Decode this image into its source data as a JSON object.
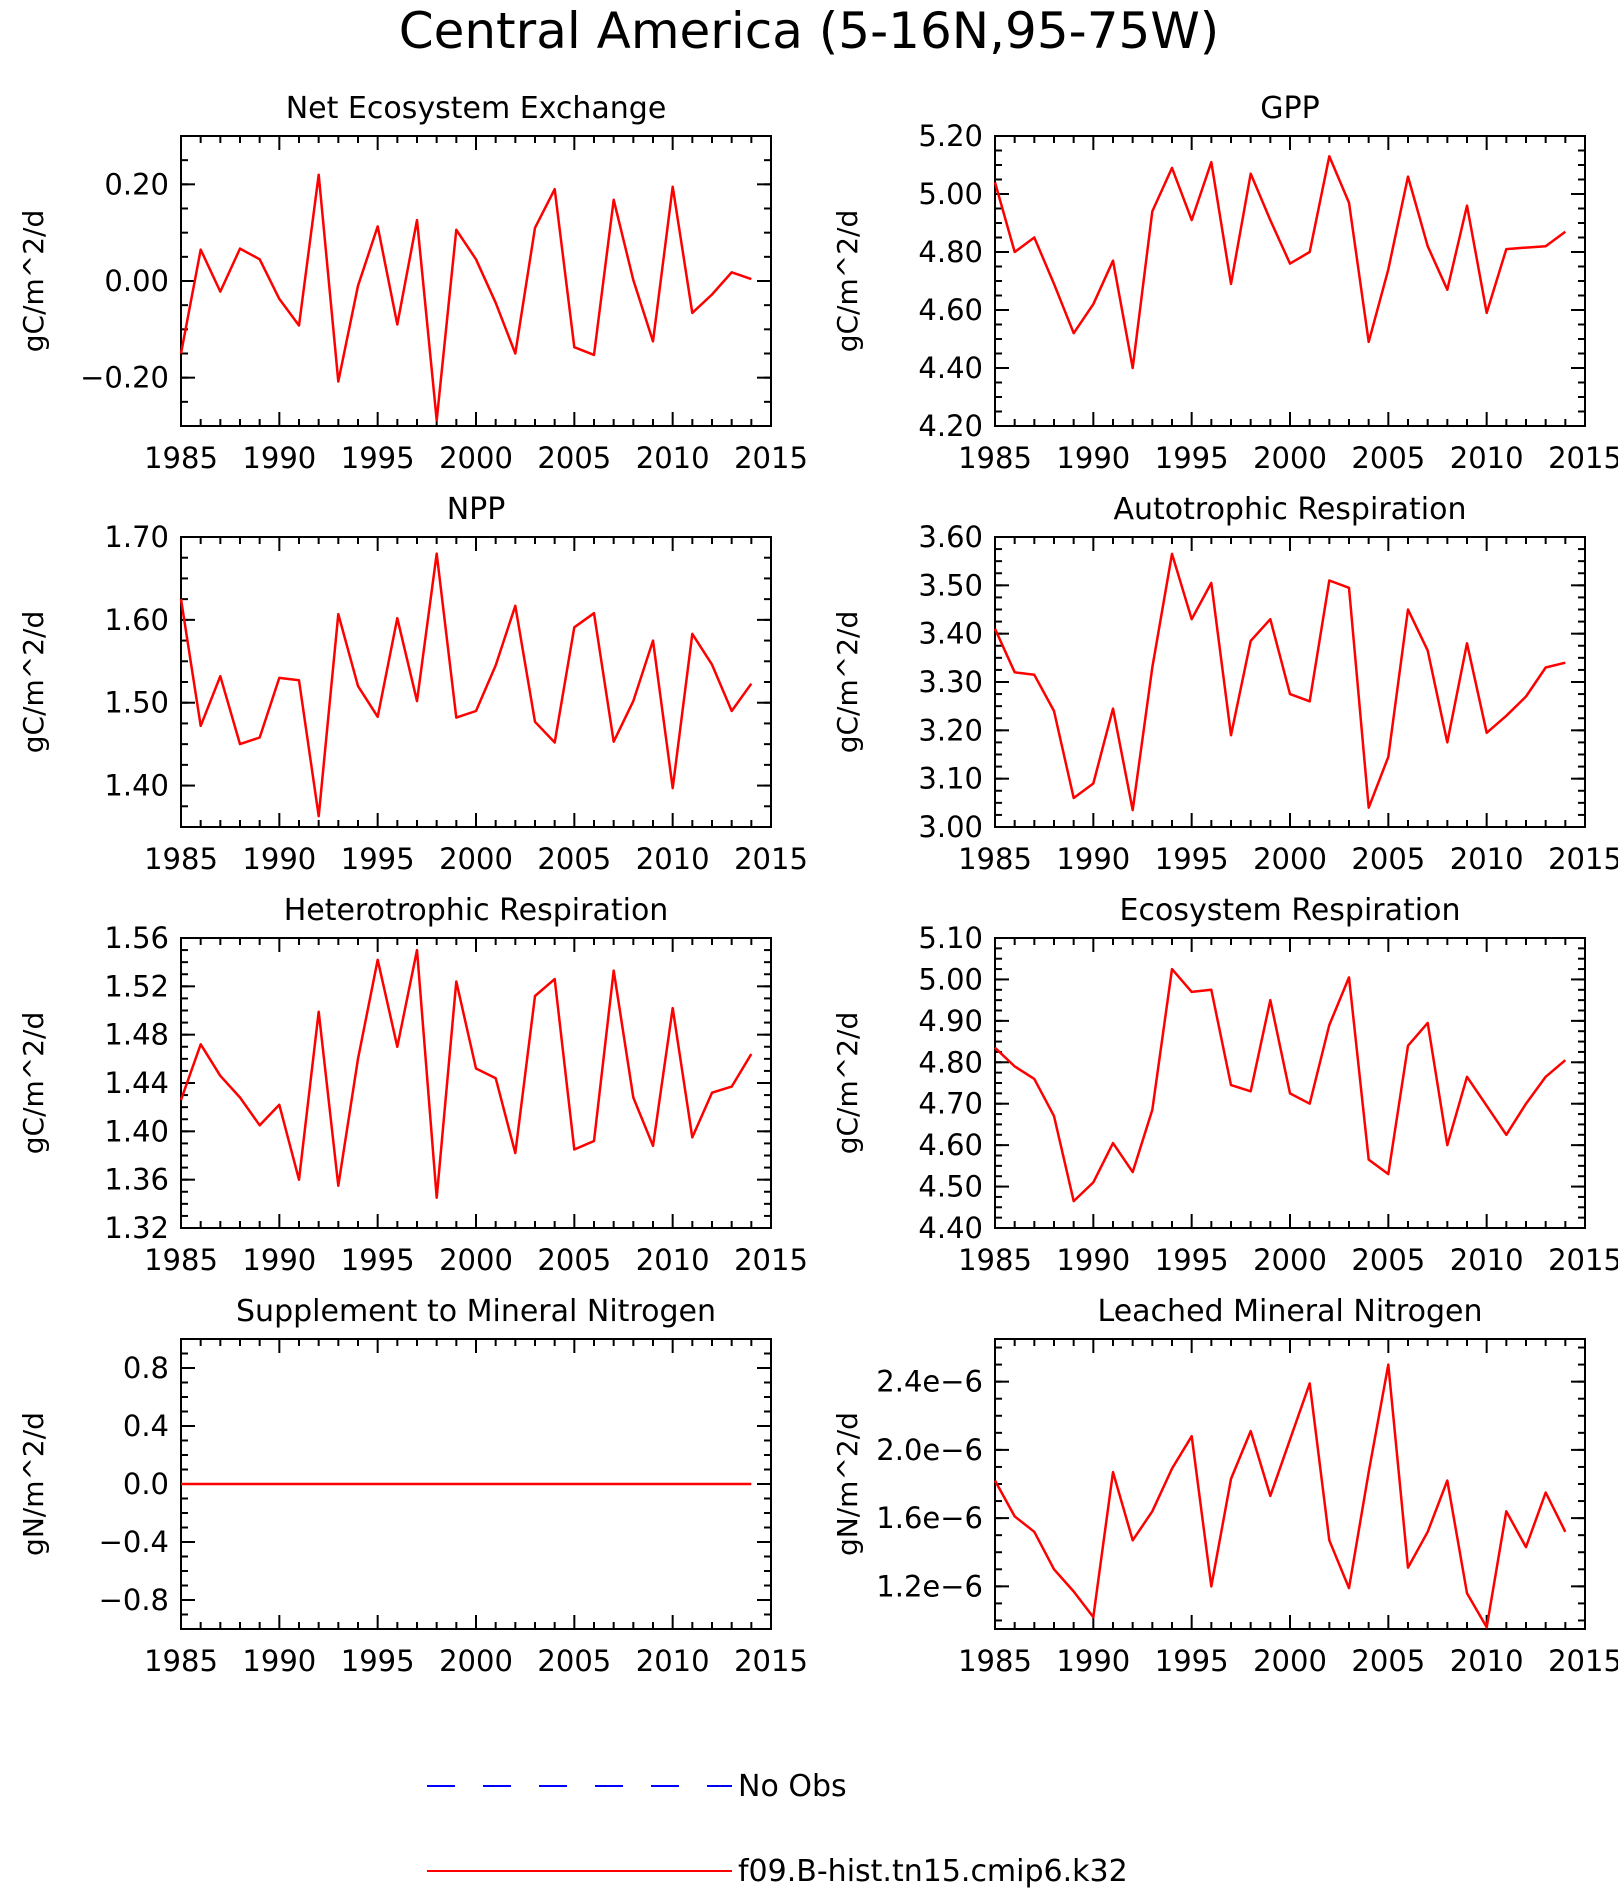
{
  "figure_title": "Central America (5-16N,95-75W)",
  "legend": [
    {
      "label": "No Obs",
      "color": "#0000ff",
      "dash": true
    },
    {
      "label": "f09.B-hist.tn15.cmip6.k32",
      "color": "#ff0000",
      "dash": false
    }
  ],
  "chart_data": [
    {
      "type": "line",
      "title": "Net Ecosystem Exchange",
      "ylabel": "gC/m^2/d",
      "xlim": [
        1985,
        2015
      ],
      "ylim": [
        -0.3,
        0.3
      ],
      "yticks": [
        -0.2,
        0.0,
        0.2
      ],
      "ytick_labels": [
        "−0.20",
        "0.00",
        "0.20"
      ],
      "xticks": [
        1985,
        1990,
        1995,
        2000,
        2005,
        2010,
        2015
      ],
      "color": "#ff0000",
      "x": [
        1985,
        1986,
        1987,
        1988,
        1989,
        1990,
        1991,
        1992,
        1993,
        1994,
        1995,
        1996,
        1997,
        1998,
        1999,
        2000,
        2001,
        2002,
        2003,
        2004,
        2005,
        2006,
        2007,
        2008,
        2009,
        2010,
        2011,
        2012,
        2013,
        2014
      ],
      "values": [
        -0.15,
        0.065,
        -0.022,
        0.067,
        0.045,
        -0.037,
        -0.092,
        0.22,
        -0.208,
        -0.01,
        0.113,
        -0.09,
        0.126,
        -0.288,
        0.106,
        0.045,
        -0.045,
        -0.15,
        0.11,
        0.19,
        -0.137,
        -0.153,
        0.168,
        0.002,
        -0.125,
        0.195,
        -0.066,
        -0.028,
        0.018,
        0.004
      ]
    },
    {
      "type": "line",
      "title": "GPP",
      "ylabel": "gC/m^2/d",
      "xlim": [
        1985,
        2015
      ],
      "ylim": [
        4.2,
        5.2
      ],
      "yticks": [
        4.2,
        4.4,
        4.6,
        4.8,
        5.0,
        5.2
      ],
      "ytick_labels": [
        "4.20",
        "4.40",
        "4.60",
        "4.80",
        "5.00",
        "5.20"
      ],
      "xticks": [
        1985,
        1990,
        1995,
        2000,
        2005,
        2010,
        2015
      ],
      "color": "#ff0000",
      "x": [
        1985,
        1986,
        1987,
        1988,
        1989,
        1990,
        1991,
        1992,
        1993,
        1994,
        1995,
        1996,
        1997,
        1998,
        1999,
        2000,
        2001,
        2002,
        2003,
        2004,
        2005,
        2006,
        2007,
        2008,
        2009,
        2010,
        2011,
        2012,
        2013,
        2014
      ],
      "values": [
        5.04,
        4.8,
        4.85,
        4.69,
        4.52,
        4.62,
        4.77,
        4.4,
        4.94,
        5.09,
        4.91,
        5.11,
        4.69,
        5.07,
        4.91,
        4.76,
        4.8,
        5.13,
        4.97,
        4.49,
        4.74,
        5.06,
        4.82,
        4.67,
        4.96,
        4.59,
        4.81,
        4.815,
        4.82,
        4.87
      ]
    },
    {
      "type": "line",
      "title": "NPP",
      "ylabel": "gC/m^2/d",
      "xlim": [
        1985,
        2015
      ],
      "ylim": [
        1.35,
        1.7
      ],
      "yticks": [
        1.4,
        1.5,
        1.6,
        1.7
      ],
      "ytick_labels": [
        "1.40",
        "1.50",
        "1.60",
        "1.70"
      ],
      "xticks": [
        1985,
        1990,
        1995,
        2000,
        2005,
        2010,
        2015
      ],
      "color": "#ff0000",
      "x": [
        1985,
        1986,
        1987,
        1988,
        1989,
        1990,
        1991,
        1992,
        1993,
        1994,
        1995,
        1996,
        1997,
        1998,
        1999,
        2000,
        2001,
        2002,
        2003,
        2004,
        2005,
        2006,
        2007,
        2008,
        2009,
        2010,
        2011,
        2012,
        2013,
        2014
      ],
      "values": [
        1.625,
        1.472,
        1.532,
        1.45,
        1.458,
        1.53,
        1.527,
        1.363,
        1.607,
        1.52,
        1.483,
        1.602,
        1.502,
        1.68,
        1.482,
        1.49,
        1.545,
        1.617,
        1.477,
        1.452,
        1.591,
        1.608,
        1.453,
        1.502,
        1.575,
        1.397,
        1.583,
        1.546,
        1.49,
        1.523
      ]
    },
    {
      "type": "line",
      "title": "Autotrophic Respiration",
      "ylabel": "gC/m^2/d",
      "xlim": [
        1985,
        2015
      ],
      "ylim": [
        3.0,
        3.6
      ],
      "yticks": [
        3.0,
        3.1,
        3.2,
        3.3,
        3.4,
        3.5,
        3.6
      ],
      "ytick_labels": [
        "3.00",
        "3.10",
        "3.20",
        "3.30",
        "3.40",
        "3.50",
        "3.60"
      ],
      "xticks": [
        1985,
        1990,
        1995,
        2000,
        2005,
        2010,
        2015
      ],
      "color": "#ff0000",
      "x": [
        1985,
        1986,
        1987,
        1988,
        1989,
        1990,
        1991,
        1992,
        1993,
        1994,
        1995,
        1996,
        1997,
        1998,
        1999,
        2000,
        2001,
        2002,
        2003,
        2004,
        2005,
        2006,
        2007,
        2008,
        2009,
        2010,
        2011,
        2012,
        2013,
        2014
      ],
      "values": [
        3.41,
        3.32,
        3.315,
        3.24,
        3.06,
        3.09,
        3.245,
        3.035,
        3.33,
        3.565,
        3.43,
        3.505,
        3.19,
        3.385,
        3.43,
        3.275,
        3.26,
        3.51,
        3.495,
        3.04,
        3.145,
        3.45,
        3.365,
        3.175,
        3.38,
        3.195,
        3.23,
        3.27,
        3.33,
        3.34
      ]
    },
    {
      "type": "line",
      "title": "Heterotrophic Respiration",
      "ylabel": "gC/m^2/d",
      "xlim": [
        1985,
        2015
      ],
      "ylim": [
        1.32,
        1.56
      ],
      "yticks": [
        1.32,
        1.36,
        1.4,
        1.44,
        1.48,
        1.52,
        1.56
      ],
      "ytick_labels": [
        "1.32",
        "1.36",
        "1.40",
        "1.44",
        "1.48",
        "1.52",
        "1.56"
      ],
      "xticks": [
        1985,
        1990,
        1995,
        2000,
        2005,
        2010,
        2015
      ],
      "color": "#ff0000",
      "x": [
        1985,
        1986,
        1987,
        1988,
        1989,
        1990,
        1991,
        1992,
        1993,
        1994,
        1995,
        1996,
        1997,
        1998,
        1999,
        2000,
        2001,
        2002,
        2003,
        2004,
        2005,
        2006,
        2007,
        2008,
        2009,
        2010,
        2011,
        2012,
        2013,
        2014
      ],
      "values": [
        1.426,
        1.472,
        1.446,
        1.428,
        1.405,
        1.422,
        1.36,
        1.499,
        1.355,
        1.46,
        1.542,
        1.47,
        1.55,
        1.345,
        1.524,
        1.452,
        1.444,
        1.382,
        1.512,
        1.526,
        1.385,
        1.392,
        1.533,
        1.428,
        1.388,
        1.502,
        1.395,
        1.432,
        1.437,
        1.464
      ]
    },
    {
      "type": "line",
      "title": "Ecosystem Respiration",
      "ylabel": "gC/m^2/d",
      "xlim": [
        1985,
        2015
      ],
      "ylim": [
        4.4,
        5.1
      ],
      "yticks": [
        4.4,
        4.5,
        4.6,
        4.7,
        4.8,
        4.9,
        5.0,
        5.1
      ],
      "ytick_labels": [
        "4.40",
        "4.50",
        "4.60",
        "4.70",
        "4.80",
        "4.90",
        "5.00",
        "5.10"
      ],
      "xticks": [
        1985,
        1990,
        1995,
        2000,
        2005,
        2010,
        2015
      ],
      "color": "#ff0000",
      "x": [
        1985,
        1986,
        1987,
        1988,
        1989,
        1990,
        1991,
        1992,
        1993,
        1994,
        1995,
        1996,
        1997,
        1998,
        1999,
        2000,
        2001,
        2002,
        2003,
        2004,
        2005,
        2006,
        2007,
        2008,
        2009,
        2010,
        2011,
        2012,
        2013,
        2014
      ],
      "values": [
        4.835,
        4.79,
        4.76,
        4.67,
        4.465,
        4.51,
        4.605,
        4.535,
        4.685,
        5.025,
        4.97,
        4.975,
        4.745,
        4.73,
        4.95,
        4.725,
        4.7,
        4.89,
        5.005,
        4.565,
        4.53,
        4.84,
        4.895,
        4.6,
        4.765,
        4.695,
        4.625,
        4.7,
        4.765,
        4.805
      ]
    },
    {
      "type": "line",
      "title": "Supplement to Mineral Nitrogen",
      "ylabel": "gN/m^2/d",
      "xlim": [
        1985,
        2015
      ],
      "ylim": [
        -1.0,
        1.0
      ],
      "yticks": [
        -0.8,
        -0.4,
        0.0,
        0.4,
        0.8
      ],
      "ytick_labels": [
        "−0.8",
        "−0.4",
        "0.0",
        "0.4",
        "0.8"
      ],
      "xticks": [
        1985,
        1990,
        1995,
        2000,
        2005,
        2010,
        2015
      ],
      "color": "#ff0000",
      "x": [
        1985,
        1986,
        1987,
        1988,
        1989,
        1990,
        1991,
        1992,
        1993,
        1994,
        1995,
        1996,
        1997,
        1998,
        1999,
        2000,
        2001,
        2002,
        2003,
        2004,
        2005,
        2006,
        2007,
        2008,
        2009,
        2010,
        2011,
        2012,
        2013,
        2014
      ],
      "values": [
        0,
        0,
        0,
        0,
        0,
        0,
        0,
        0,
        0,
        0,
        0,
        0,
        0,
        0,
        0,
        0,
        0,
        0,
        0,
        0,
        0,
        0,
        0,
        0,
        0,
        0,
        0,
        0,
        0,
        0
      ]
    },
    {
      "type": "line",
      "title": "Leached Mineral Nitrogen",
      "ylabel": "gN/m^2/d",
      "xlim": [
        1985,
        2015
      ],
      "ylim": [
        9.5e-07,
        2.65e-06
      ],
      "yticks": [
        1.2e-06,
        1.6e-06,
        2e-06,
        2.4e-06
      ],
      "ytick_labels": [
        "1.2e−6",
        "1.6e−6",
        "2.0e−6",
        "2.4e−6"
      ],
      "xticks": [
        1985,
        1990,
        1995,
        2000,
        2005,
        2010,
        2015
      ],
      "color": "#ff0000",
      "x": [
        1985,
        1986,
        1987,
        1988,
        1989,
        1990,
        1991,
        1992,
        1993,
        1994,
        1995,
        1996,
        1997,
        1998,
        1999,
        2000,
        2001,
        2002,
        2003,
        2004,
        2005,
        2006,
        2007,
        2008,
        2009,
        2010,
        2011,
        2012,
        2013,
        2014
      ],
      "values": [
        1.82e-06,
        1.61e-06,
        1.52e-06,
        1.3e-06,
        1.17e-06,
        1.02e-06,
        1.87e-06,
        1.47e-06,
        1.64e-06,
        1.89e-06,
        2.08e-06,
        1.2e-06,
        1.83e-06,
        2.11e-06,
        1.73e-06,
        2.06e-06,
        2.39e-06,
        1.47e-06,
        1.19e-06,
        1.87e-06,
        2.5e-06,
        1.31e-06,
        1.52e-06,
        1.82e-06,
        1.16e-06,
        9.6e-07,
        1.64e-06,
        1.43e-06,
        1.75e-06,
        1.52e-06
      ]
    }
  ]
}
